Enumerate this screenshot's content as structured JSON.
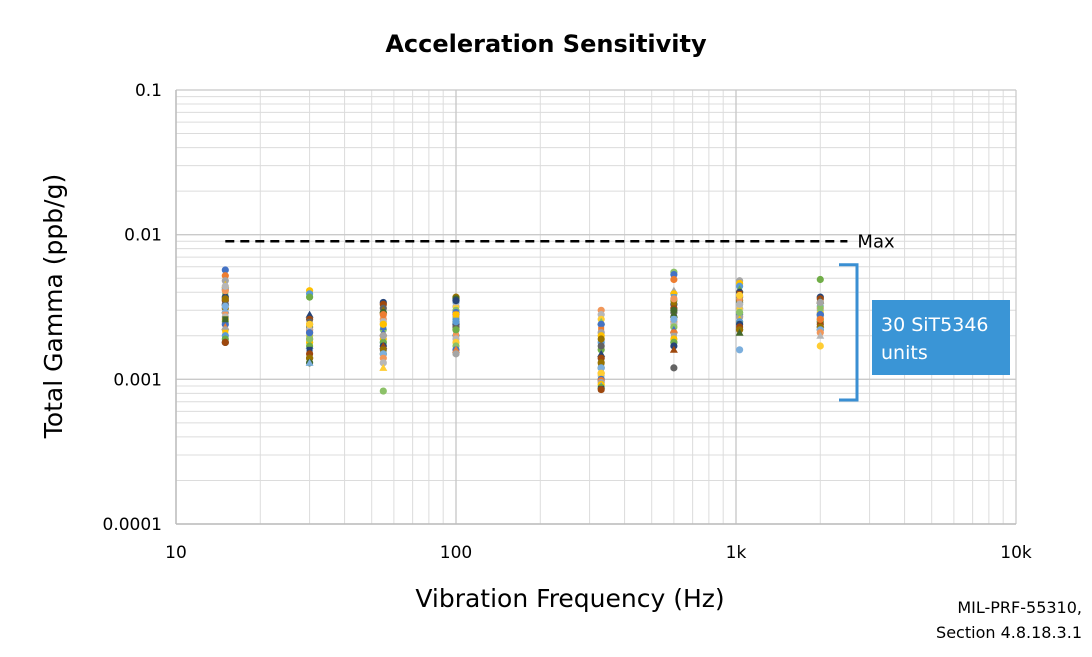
{
  "chart_data": {
    "type": "scatter",
    "title": "Acceleration Sensitivity",
    "xlabel": "Vibration Frequency (Hz)",
    "ylabel": "Total Gamma (ppb/g)",
    "xscale": "log",
    "yscale": "log",
    "xlim": [
      10,
      10000
    ],
    "ylim": [
      0.0001,
      0.1
    ],
    "x_ticks": [
      {
        "value": 10,
        "label": "10"
      },
      {
        "value": 100,
        "label": "100"
      },
      {
        "value": 1000,
        "label": "1k"
      },
      {
        "value": 10000,
        "label": "10k"
      }
    ],
    "y_ticks": [
      {
        "value": 0.1,
        "label": "0.1"
      },
      {
        "value": 0.01,
        "label": "0.01"
      },
      {
        "value": 0.001,
        "label": "0.001"
      },
      {
        "value": 0.0001,
        "label": "0.0001"
      }
    ],
    "grid": true,
    "max_line": {
      "label": "Max",
      "value": 0.009,
      "x_range": [
        15,
        2500
      ]
    },
    "callout": {
      "text_line1": "30 SiT5346",
      "text_line2": "units",
      "y_range": [
        0.00072,
        0.0062
      ]
    },
    "note_line1": "MIL-PRF-55310,",
    "note_line2": "Section 4.8.18.3.1",
    "marker_colors": [
      "#4472c4",
      "#ed7d31",
      "#a5a5a5",
      "#ffc000",
      "#5b9bd5",
      "#70ad47",
      "#264478",
      "#9e480e",
      "#636363",
      "#997300",
      "#43682b",
      "#7cafdd",
      "#f1975a",
      "#b7b7b7",
      "#ffcd33",
      "#8cc168"
    ],
    "series": [
      {
        "frequency": 15,
        "values": [
          0.0057,
          0.0052,
          0.0048,
          0.0045,
          0.0042,
          0.0039,
          0.0037,
          0.0035,
          0.0033,
          0.0031,
          0.003,
          0.0029,
          0.0028,
          0.0027,
          0.0026,
          0.0025,
          0.0024,
          0.0023,
          0.0022,
          0.0021,
          0.002,
          0.0019,
          0.0018,
          0.0018,
          0.0034,
          0.0036,
          0.0026,
          0.0032,
          0.0041,
          0.0044
        ]
      },
      {
        "frequency": 30,
        "values": [
          0.0041,
          0.0039,
          0.0037,
          0.0028,
          0.0026,
          0.0025,
          0.0024,
          0.0023,
          0.0022,
          0.0021,
          0.0021,
          0.002,
          0.002,
          0.0019,
          0.0019,
          0.0018,
          0.0018,
          0.0017,
          0.0017,
          0.0016,
          0.0015,
          0.0014,
          0.0014,
          0.0013,
          0.0013,
          0.0022,
          0.0023,
          0.0024,
          0.0019,
          0.0021
        ]
      },
      {
        "frequency": 55,
        "values": [
          0.0034,
          0.0033,
          0.0031,
          0.003,
          0.0029,
          0.0027,
          0.0026,
          0.0025,
          0.0024,
          0.0022,
          0.0021,
          0.002,
          0.0019,
          0.0019,
          0.0018,
          0.0018,
          0.0017,
          0.0017,
          0.0016,
          0.0016,
          0.0015,
          0.0015,
          0.0014,
          0.0013,
          0.0012,
          0.00083,
          0.0023,
          0.0028,
          0.002,
          0.0024
        ]
      },
      {
        "frequency": 100,
        "values": [
          0.0037,
          0.0036,
          0.0034,
          0.0033,
          0.0032,
          0.0031,
          0.003,
          0.0029,
          0.0028,
          0.0027,
          0.0026,
          0.0026,
          0.0025,
          0.0024,
          0.0023,
          0.0023,
          0.0022,
          0.0021,
          0.002,
          0.002,
          0.0019,
          0.0018,
          0.0017,
          0.0016,
          0.0016,
          0.0015,
          0.0028,
          0.0025,
          0.0022,
          0.0035
        ]
      },
      {
        "frequency": 330,
        "values": [
          0.003,
          0.0028,
          0.0026,
          0.0025,
          0.0024,
          0.0022,
          0.0021,
          0.002,
          0.0018,
          0.0016,
          0.0015,
          0.0014,
          0.0013,
          0.0013,
          0.0012,
          0.0012,
          0.0011,
          0.0011,
          0.0011,
          0.001,
          0.001,
          0.00098,
          0.00095,
          0.00092,
          0.0009,
          0.00088,
          0.00086,
          0.00085,
          0.0017,
          0.0019
        ]
      },
      {
        "frequency": 600,
        "values": [
          0.0055,
          0.0053,
          0.0049,
          0.0041,
          0.0039,
          0.0037,
          0.0035,
          0.0033,
          0.0031,
          0.0029,
          0.0028,
          0.0027,
          0.0026,
          0.0025,
          0.0024,
          0.0023,
          0.0023,
          0.0022,
          0.0021,
          0.002,
          0.0019,
          0.0018,
          0.0018,
          0.0017,
          0.0016,
          0.0012,
          0.0034,
          0.003,
          0.0026,
          0.0036
        ]
      },
      {
        "frequency": 1030,
        "values": [
          0.0048,
          0.0046,
          0.0044,
          0.0042,
          0.004,
          0.0039,
          0.0037,
          0.0035,
          0.0034,
          0.0033,
          0.0032,
          0.0031,
          0.003,
          0.0029,
          0.0028,
          0.0027,
          0.0027,
          0.0026,
          0.0025,
          0.0024,
          0.0024,
          0.0023,
          0.0022,
          0.0022,
          0.0021,
          0.0016,
          0.0036,
          0.0033,
          0.0038,
          0.0029
        ]
      },
      {
        "frequency": 2000,
        "values": [
          0.0049,
          0.0037,
          0.0036,
          0.0035,
          0.0034,
          0.0033,
          0.0032,
          0.0031,
          0.003,
          0.0029,
          0.0029,
          0.0028,
          0.0027,
          0.0027,
          0.0026,
          0.0025,
          0.0025,
          0.0024,
          0.0024,
          0.0023,
          0.0023,
          0.0022,
          0.0022,
          0.0021,
          0.002,
          0.0017,
          0.0031,
          0.0028,
          0.0026,
          0.0034
        ]
      }
    ]
  }
}
